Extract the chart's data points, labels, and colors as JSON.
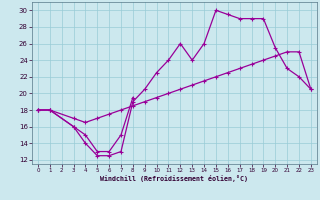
{
  "xlabel": "Windchill (Refroidissement éolien,°C)",
  "bg_color": "#cce8ee",
  "grid_color": "#99ccd6",
  "line_color": "#990099",
  "ylim": [
    11.5,
    31
  ],
  "xlim": [
    -0.5,
    23.5
  ],
  "yticks": [
    12,
    14,
    16,
    18,
    20,
    22,
    24,
    26,
    28,
    30
  ],
  "xticks": [
    0,
    1,
    2,
    3,
    4,
    5,
    6,
    7,
    8,
    9,
    10,
    11,
    12,
    13,
    14,
    15,
    16,
    17,
    18,
    19,
    20,
    21,
    22,
    23
  ],
  "series1_x": [
    0,
    1,
    3,
    4,
    5,
    6,
    7,
    8
  ],
  "series1_y": [
    18,
    18,
    16,
    15,
    13,
    13,
    15,
    19.5
  ],
  "series2_x": [
    0,
    1,
    3,
    4,
    5,
    6,
    7,
    8,
    9,
    10,
    11,
    12,
    13,
    14,
    15,
    16,
    17,
    18,
    19,
    20,
    21,
    22,
    23
  ],
  "series2_y": [
    18,
    18,
    16,
    14,
    12.5,
    12.5,
    13,
    19,
    20.5,
    22.5,
    24,
    26,
    24,
    26,
    30,
    29.5,
    29,
    29,
    29,
    25.5,
    23,
    22,
    20.5
  ],
  "series3_x": [
    0,
    1,
    3,
    4,
    5,
    6,
    7,
    8,
    9,
    10,
    11,
    12,
    13,
    14,
    15,
    16,
    17,
    18,
    19,
    20,
    21,
    22,
    23
  ],
  "series3_y": [
    18,
    18,
    17,
    16.5,
    17,
    17.5,
    18,
    18.5,
    19,
    19.5,
    20,
    20.5,
    21,
    21.5,
    22,
    22.5,
    23,
    23.5,
    24,
    24.5,
    25,
    25,
    20.5
  ]
}
